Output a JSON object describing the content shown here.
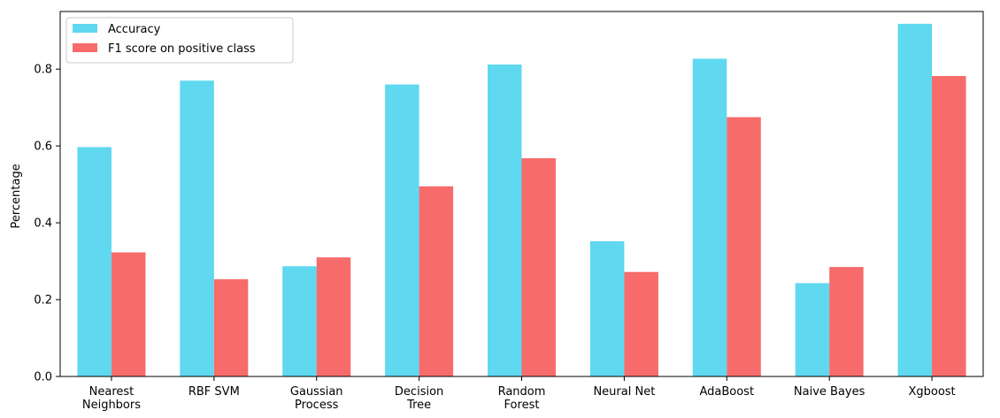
{
  "chart_data": {
    "type": "bar",
    "title": "",
    "xlabel": "",
    "ylabel": "Percentage",
    "ylim": [
      0,
      0.95
    ],
    "yticks": [
      0.0,
      0.2,
      0.4,
      0.6,
      0.8
    ],
    "ytick_labels": [
      "0.0",
      "0.2",
      "0.4",
      "0.6",
      "0.8"
    ],
    "categories": [
      [
        "Nearest",
        "Neighbors"
      ],
      [
        "RBF SVM"
      ],
      [
        "Gaussian",
        "Process"
      ],
      [
        "Decision",
        "Tree"
      ],
      [
        "Random",
        "Forest"
      ],
      [
        "Neural Net"
      ],
      [
        "AdaBoost"
      ],
      [
        "Naive Bayes"
      ],
      [
        "Xgboost"
      ]
    ],
    "series": [
      {
        "name": "Accuracy",
        "color": "#5fd8f0",
        "values": [
          0.597,
          0.77,
          0.287,
          0.76,
          0.812,
          0.352,
          0.827,
          0.243,
          0.918
        ]
      },
      {
        "name": "F1 score on positive class",
        "color": "#f76b6b",
        "values": [
          0.323,
          0.253,
          0.31,
          0.495,
          0.568,
          0.272,
          0.675,
          0.285,
          0.782
        ]
      }
    ],
    "grid": false,
    "legend_position": "top-left"
  }
}
